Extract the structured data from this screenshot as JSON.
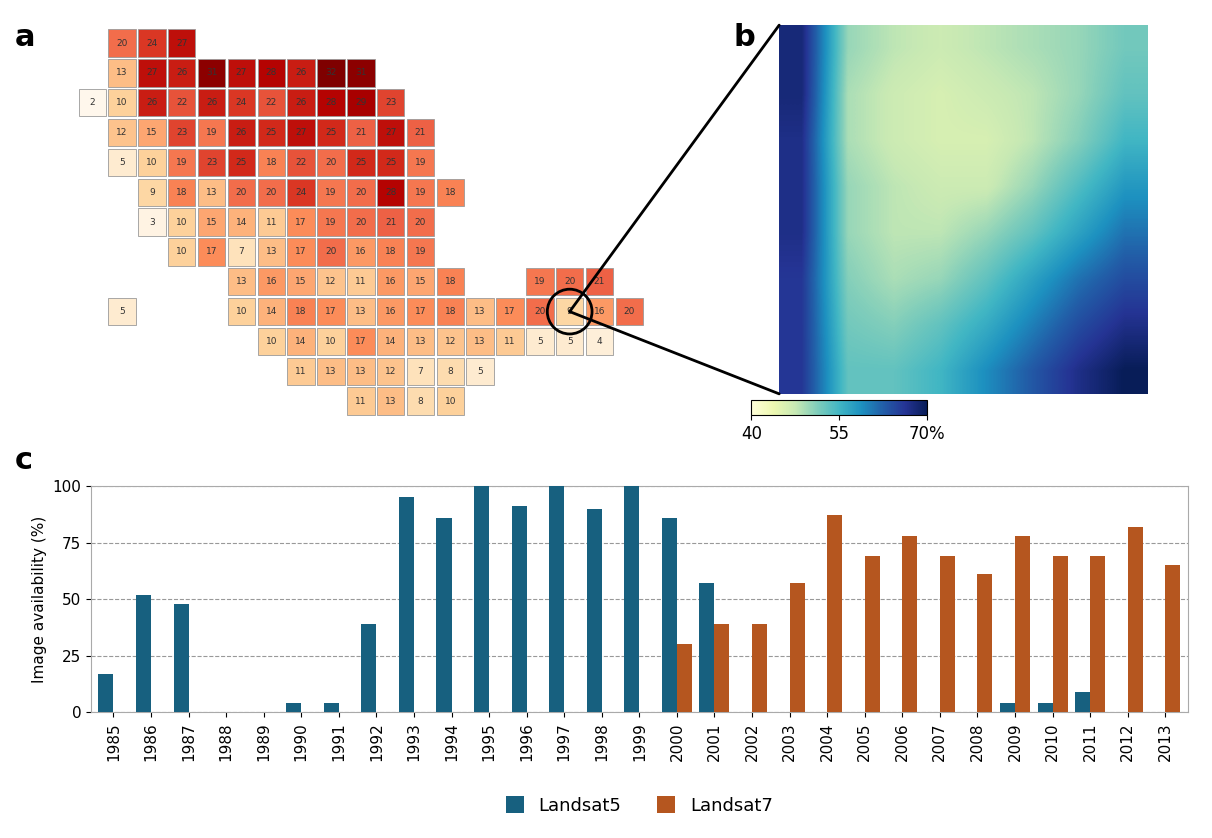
{
  "chart_data": [
    {
      "type": "heatmap",
      "title": "a",
      "data_labels": true,
      "tick_labels": false,
      "cells": [
        [
          null,
          20,
          24,
          27,
          null,
          null,
          null,
          null,
          null,
          null,
          null,
          null,
          null,
          null,
          null,
          null,
          null,
          null,
          null,
          null
        ],
        [
          null,
          13,
          27,
          26,
          31,
          27,
          28,
          26,
          32,
          31,
          null,
          null,
          null,
          null,
          null,
          null,
          null,
          null,
          null,
          null
        ],
        [
          2,
          10,
          26,
          22,
          26,
          24,
          22,
          26,
          28,
          29,
          23,
          null,
          null,
          null,
          null,
          null,
          null,
          null,
          null,
          null
        ],
        [
          null,
          12,
          15,
          23,
          19,
          26,
          25,
          27,
          25,
          21,
          27,
          21,
          null,
          null,
          null,
          null,
          null,
          null,
          null,
          null
        ],
        [
          null,
          5,
          10,
          19,
          23,
          25,
          18,
          22,
          20,
          25,
          25,
          19,
          null,
          null,
          null,
          null,
          null,
          null,
          null,
          null
        ],
        [
          null,
          null,
          9,
          18,
          13,
          20,
          20,
          24,
          19,
          20,
          28,
          19,
          18,
          null,
          null,
          null,
          null,
          null,
          null,
          null
        ],
        [
          null,
          null,
          3,
          10,
          15,
          14,
          11,
          17,
          19,
          20,
          21,
          20,
          null,
          null,
          null,
          null,
          null,
          null,
          null,
          null
        ],
        [
          null,
          null,
          null,
          10,
          17,
          7,
          13,
          17,
          20,
          16,
          18,
          19,
          null,
          null,
          null,
          null,
          null,
          null,
          null,
          null
        ],
        [
          null,
          null,
          null,
          null,
          null,
          13,
          16,
          15,
          12,
          11,
          16,
          15,
          18,
          null,
          null,
          19,
          20,
          21,
          null,
          null
        ],
        [
          null,
          5,
          null,
          null,
          null,
          10,
          14,
          18,
          17,
          13,
          16,
          17,
          18,
          13,
          17,
          20,
          9,
          16,
          20,
          null
        ],
        [
          null,
          null,
          null,
          null,
          null,
          null,
          10,
          14,
          10,
          17,
          14,
          13,
          12,
          13,
          11,
          5,
          5,
          4,
          null,
          null
        ],
        [
          null,
          null,
          null,
          null,
          null,
          null,
          null,
          11,
          13,
          13,
          12,
          7,
          8,
          5,
          null,
          null,
          null,
          null,
          null,
          null
        ],
        [
          null,
          null,
          null,
          null,
          null,
          null,
          null,
          null,
          null,
          11,
          13,
          8,
          10,
          null,
          null,
          null,
          null,
          null,
          null,
          null
        ]
      ]
    },
    {
      "type": "heatmap",
      "title": "b",
      "tick_labels": false,
      "cells": [
        [
          68,
          50,
          48,
          47,
          48,
          49,
          50,
          52
        ],
        [
          68,
          49,
          47,
          46,
          47,
          48,
          50,
          53
        ],
        [
          67,
          49,
          47,
          46,
          46,
          48,
          51,
          55
        ],
        [
          67,
          50,
          48,
          47,
          47,
          50,
          54,
          58
        ],
        [
          67,
          50,
          48,
          48,
          50,
          53,
          57,
          61
        ],
        [
          66,
          51,
          49,
          50,
          53,
          57,
          61,
          64
        ],
        [
          66,
          52,
          51,
          53,
          56,
          60,
          64,
          67
        ],
        [
          66,
          53,
          53,
          55,
          59,
          63,
          67,
          70
        ]
      ],
      "colorbar": {
        "range": [
          40,
          70
        ],
        "ticks": [
          40,
          55,
          {
            "value": 70,
            "label": "70%"
          }
        ]
      }
    },
    {
      "type": "bar",
      "title": "c",
      "y_label": "Image availability (%)",
      "categories": [
        "1985",
        "1986",
        "1987",
        "1988",
        "1989",
        "1990",
        "1991",
        "1992",
        "1993",
        "1994",
        "1995",
        "1996",
        "1997",
        "1998",
        "1999",
        "2000",
        "2001",
        "2002",
        "2003",
        "2004",
        "2005",
        "2006",
        "2007",
        "2008",
        "2009",
        "2010",
        "2011",
        "2012",
        "2013"
      ],
      "series": [
        {
          "name": "Landsat5",
          "color": "#17607f",
          "values": [
            17,
            52,
            48,
            0,
            0,
            4,
            4,
            39,
            95,
            86,
            100,
            91,
            100,
            90,
            100,
            86,
            57,
            0,
            0,
            0,
            0,
            0,
            0,
            0,
            4,
            4,
            9,
            0,
            0
          ]
        },
        {
          "name": "Landsat7",
          "color": "#b5561f",
          "values": [
            0,
            0,
            0,
            0,
            0,
            0,
            0,
            0,
            0,
            0,
            0,
            0,
            0,
            0,
            0,
            30,
            39,
            39,
            57,
            87,
            69,
            78,
            69,
            61,
            78,
            69,
            69,
            82,
            65
          ]
        }
      ],
      "ylim": [
        0,
        100
      ],
      "yticks": [
        0,
        25,
        50,
        75,
        100
      ],
      "grid": true,
      "legend": "upper center"
    }
  ]
}
